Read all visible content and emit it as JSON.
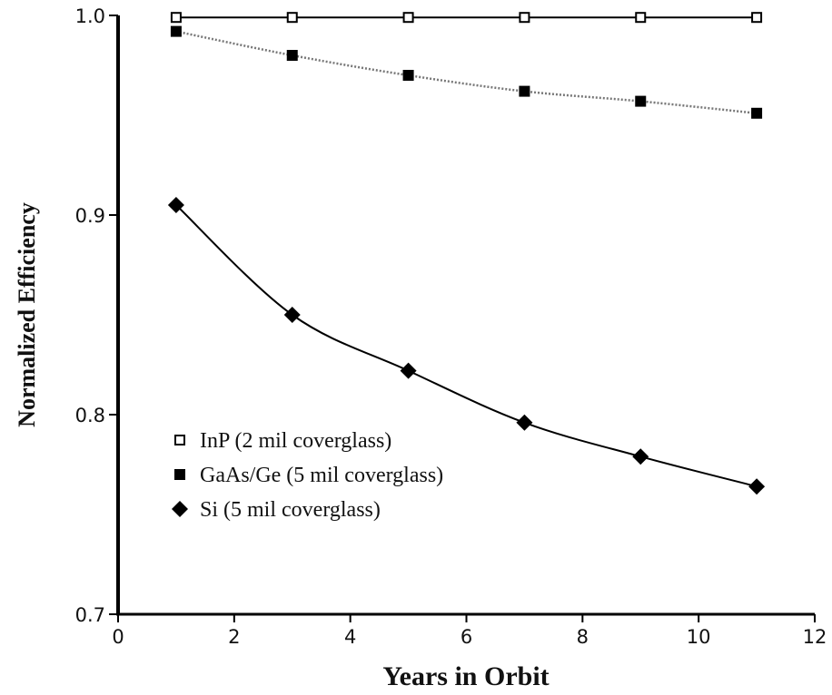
{
  "chart_data": {
    "type": "line",
    "xlabel": "Years in Orbit",
    "ylabel": "Normalized Efficiency",
    "xlim": [
      0,
      12
    ],
    "xticks": [
      0,
      2,
      4,
      6,
      8,
      10,
      12
    ],
    "ylim": [
      0.7,
      1.0
    ],
    "yticks": [
      0.7,
      0.8,
      0.9,
      {
        "value": 1.0,
        "label": "1.0"
      }
    ],
    "legend": "lower left",
    "series": [
      {
        "name": "InP (2 mil coverglass)",
        "color": "#000000",
        "marker": "open-square",
        "line_style": "solid",
        "x": [
          1,
          3,
          5,
          7,
          9,
          11
        ],
        "values": [
          0.999,
          0.999,
          0.999,
          0.999,
          0.999,
          0.999
        ]
      },
      {
        "name": "GaAs/Ge (5 mil coverglass)",
        "color": "#000000",
        "marker": "square",
        "line_style": "dotted",
        "x": [
          1,
          3,
          5,
          7,
          9,
          11
        ],
        "values": [
          0.992,
          0.98,
          0.97,
          0.962,
          0.957,
          0.951
        ]
      },
      {
        "name": "Si (5 mil coverglass)",
        "color": "#000000",
        "marker": "diamond",
        "line_style": "solid",
        "x": [
          1,
          3,
          5,
          7,
          9,
          11
        ],
        "values": [
          0.905,
          0.85,
          0.822,
          0.796,
          0.779,
          0.764
        ]
      }
    ]
  }
}
